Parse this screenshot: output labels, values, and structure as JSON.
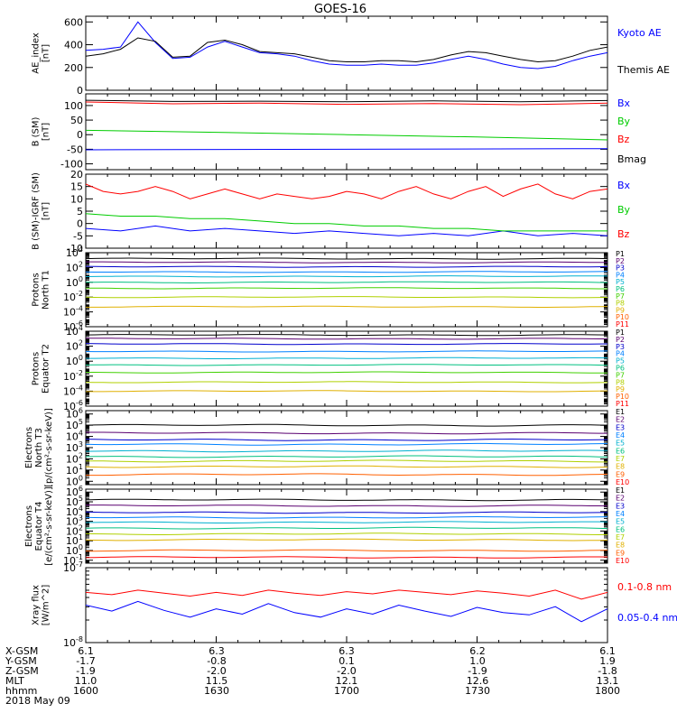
{
  "title": "GOES-16",
  "footer": {
    "row_labels": [
      "X-GSM",
      "Y-GSM",
      "Z-GSM",
      "MLT",
      "hhmm",
      "2018 May 09"
    ],
    "columns": [
      {
        "values": [
          "6.1",
          "-1.7",
          "-1.9",
          "11.0",
          "1600"
        ]
      },
      {
        "values": [
          "6.3",
          "-0.8",
          "-2.0",
          "11.5",
          "1630"
        ]
      },
      {
        "values": [
          "6.3",
          "0.1",
          "-2.0",
          "12.1",
          "1700"
        ]
      },
      {
        "values": [
          "6.2",
          "1.0",
          "-1.9",
          "12.6",
          "1730"
        ]
      },
      {
        "values": [
          "6.1",
          "1.9",
          "-1.8",
          "13.1",
          "1800"
        ]
      }
    ]
  },
  "chart_data": [
    {
      "type": "line",
      "ylabel": [
        "AE_index",
        "[nT]"
      ],
      "yticks": [
        "600",
        "400",
        "200",
        "0"
      ],
      "ylim": [
        0,
        650
      ],
      "series": [
        {
          "name": "Kyoto AE",
          "color": "#0000ff",
          "x": [
            0,
            4,
            8,
            12,
            16,
            20,
            24,
            28,
            32,
            36,
            40,
            44,
            48,
            52,
            56,
            60,
            64,
            68,
            72,
            76,
            80,
            84,
            88,
            92,
            96,
            100,
            104,
            108,
            112,
            116,
            120
          ],
          "y": [
            350,
            360,
            380,
            600,
            420,
            280,
            290,
            380,
            430,
            380,
            330,
            320,
            300,
            260,
            230,
            220,
            220,
            230,
            220,
            220,
            240,
            270,
            300,
            270,
            230,
            200,
            190,
            210,
            260,
            300,
            330
          ]
        },
        {
          "name": "Themis AE",
          "color": "#000000",
          "x": [
            0,
            4,
            8,
            12,
            16,
            20,
            24,
            28,
            32,
            36,
            40,
            44,
            48,
            52,
            56,
            60,
            64,
            68,
            72,
            76,
            80,
            84,
            88,
            92,
            96,
            100,
            104,
            108,
            112,
            116,
            120
          ],
          "y": [
            300,
            320,
            360,
            460,
            430,
            290,
            300,
            420,
            440,
            400,
            340,
            330,
            320,
            290,
            260,
            250,
            250,
            260,
            260,
            250,
            270,
            310,
            340,
            330,
            300,
            270,
            250,
            260,
            300,
            350,
            380
          ]
        }
      ]
    },
    {
      "type": "line",
      "ylabel": [
        "B (SM)",
        "[nT]"
      ],
      "yticks": [
        "100",
        "50",
        "0",
        "-50",
        "-100"
      ],
      "ylim": [
        -120,
        140
      ],
      "series": [
        {
          "name": "Bx",
          "color": "#0000ff",
          "x": [
            0,
            120
          ],
          "y": [
            -52,
            -48
          ]
        },
        {
          "name": "By",
          "color": "#00cc00",
          "x": [
            0,
            30,
            60,
            90,
            120
          ],
          "y": [
            15,
            8,
            0,
            -8,
            -18
          ]
        },
        {
          "name": "Bz",
          "color": "#ff0000",
          "x": [
            0,
            20,
            40,
            60,
            80,
            100,
            120
          ],
          "y": [
            112,
            106,
            108,
            104,
            107,
            103,
            108
          ]
        },
        {
          "name": "Bmag",
          "color": "#000000",
          "x": [
            0,
            20,
            40,
            60,
            80,
            100,
            120
          ],
          "y": [
            118,
            114,
            115,
            113,
            116,
            113,
            117
          ]
        }
      ]
    },
    {
      "type": "line",
      "ylabel": [
        "B (SM)-IGRF (SM)",
        "[nT]"
      ],
      "yticks": [
        "20",
        "15",
        "10",
        "5",
        "0",
        "-5",
        "-10"
      ],
      "ylim": [
        -10,
        20
      ],
      "series": [
        {
          "name": "Bx",
          "color": "#0000ff",
          "x": [
            0,
            8,
            16,
            24,
            32,
            40,
            48,
            56,
            64,
            72,
            80,
            88,
            96,
            104,
            112,
            120
          ],
          "y": [
            -2,
            -3,
            -1,
            -3,
            -2,
            -3,
            -4,
            -3,
            -4,
            -5,
            -4,
            -5,
            -3,
            -5,
            -4,
            -5
          ]
        },
        {
          "name": "By",
          "color": "#00cc00",
          "x": [
            0,
            8,
            16,
            24,
            32,
            40,
            48,
            56,
            64,
            72,
            80,
            88,
            96,
            104,
            112,
            120
          ],
          "y": [
            4,
            3,
            3,
            2,
            2,
            1,
            0,
            0,
            -1,
            -1,
            -2,
            -2,
            -3,
            -3,
            -3,
            -3
          ]
        },
        {
          "name": "Bz",
          "color": "#ff0000",
          "x": [
            0,
            4,
            8,
            12,
            16,
            20,
            24,
            28,
            32,
            36,
            40,
            44,
            48,
            52,
            56,
            60,
            64,
            68,
            72,
            76,
            80,
            84,
            88,
            92,
            96,
            100,
            104,
            108,
            112,
            116,
            120
          ],
          "y": [
            16,
            13,
            12,
            13,
            15,
            13,
            10,
            12,
            14,
            12,
            10,
            12,
            11,
            10,
            11,
            13,
            12,
            10,
            13,
            15,
            12,
            10,
            13,
            15,
            11,
            14,
            16,
            12,
            10,
            13,
            14
          ]
        }
      ]
    },
    {
      "type": "line",
      "yscale": "log",
      "ylabel": [
        "Protons",
        "North T1"
      ],
      "yticks": [
        "10^4",
        "10^2",
        "10^0",
        "10^-2",
        "10^-4",
        "10^-6"
      ],
      "ylim_exp": [
        -6,
        4
      ],
      "channels": [
        "P1",
        "P2",
        "P3",
        "P4",
        "P5",
        "P6",
        "P7",
        "P8",
        "P9",
        "P10",
        "P11"
      ],
      "channel_colors": [
        "#000000",
        "#5a0070",
        "#0000cc",
        "#0080ff",
        "#00b0d0",
        "#00c080",
        "#40d000",
        "#b0d000",
        "#e0b000",
        "#ff6000",
        "#ff0000"
      ],
      "series_exp": [
        3.2,
        2.7,
        2.1,
        1.4,
        0.8,
        0.0,
        -0.8,
        -2.0,
        -3.3
      ]
    },
    {
      "type": "line",
      "yscale": "log",
      "ylabel": [
        "Protons",
        "Equator T2"
      ],
      "yticks": [
        "10^4",
        "10^2",
        "10^0",
        "10^-2",
        "10^-4",
        "10^-6"
      ],
      "ylim_exp": [
        -6,
        4
      ],
      "channels": [
        "P1",
        "P2",
        "P3",
        "P4",
        "P5",
        "P6",
        "P7",
        "P8",
        "P9",
        "P10",
        "P11"
      ],
      "channel_colors": [
        "#000000",
        "#5a0070",
        "#0000cc",
        "#0080ff",
        "#00b0d0",
        "#00c080",
        "#40d000",
        "#b0d000",
        "#e0b000",
        "#ff6000",
        "#ff0000"
      ],
      "series_exp": [
        3.5,
        3.0,
        2.3,
        1.3,
        0.4,
        -0.5,
        -1.5,
        -2.8,
        -4.0
      ]
    },
    {
      "type": "line",
      "yscale": "log",
      "ylabel": [
        "Electrons",
        "North T3"
      ],
      "unit_label": "[p/(cm²-s-sr-keV)]",
      "yticks": [
        "10^6",
        "10^5",
        "10^4",
        "10^3",
        "10^2",
        "10^1",
        "10^0"
      ],
      "ylim_exp": [
        -0.3,
        6.3
      ],
      "channels": [
        "E1",
        "E2",
        "E3",
        "E4",
        "E5",
        "E6",
        "E7",
        "E8",
        "E9",
        "E10"
      ],
      "channel_colors": [
        "#000000",
        "#5a0070",
        "#0000cc",
        "#0080ff",
        "#00b0d0",
        "#00c080",
        "#b0d000",
        "#e0b000",
        "#ff6000",
        "#ff0000"
      ],
      "series_exp": [
        5.0,
        4.3,
        3.7,
        3.3,
        2.7,
        2.2,
        1.8,
        1.3,
        0.6
      ]
    },
    {
      "type": "line",
      "yscale": "log",
      "ylabel": [
        "Electrons",
        "Equator T4"
      ],
      "unit_label": "[e/(cm²-s-sr-keV)]",
      "yticks": [
        "10^6",
        "10^5",
        "10^4",
        "10^3",
        "10^2",
        "10^1",
        "10^0",
        "10^-1"
      ],
      "ylim_exp": [
        -1.3,
        6.3
      ],
      "channels": [
        "E1",
        "E2",
        "E3",
        "E4",
        "E5",
        "E6",
        "E7",
        "E8",
        "E9",
        "E10"
      ],
      "channel_colors": [
        "#000000",
        "#5a0070",
        "#0000cc",
        "#0080ff",
        "#00b0d0",
        "#00c080",
        "#b0d000",
        "#e0b000",
        "#ff6000",
        "#ff0000"
      ],
      "series_exp": [
        5.2,
        4.6,
        3.9,
        3.4,
        2.9,
        2.3,
        1.7,
        1.1,
        0.0,
        -0.7
      ]
    },
    {
      "type": "line",
      "yscale": "log",
      "ylabel": [
        "Xray flux",
        "[W/m^2]"
      ],
      "yticks": [
        "10^-7",
        "10^-8"
      ],
      "ylim_exp": [
        -8,
        -7
      ],
      "series": [
        {
          "name": "0.1-0.8 nm",
          "color": "#ff0000",
          "x": [
            0,
            6,
            12,
            18,
            24,
            30,
            36,
            42,
            48,
            54,
            60,
            66,
            72,
            78,
            84,
            90,
            96,
            102,
            108,
            114,
            120
          ],
          "y_exp": [
            -7.33,
            -7.36,
            -7.3,
            -7.34,
            -7.38,
            -7.33,
            -7.37,
            -7.3,
            -7.34,
            -7.37,
            -7.32,
            -7.35,
            -7.3,
            -7.33,
            -7.36,
            -7.31,
            -7.34,
            -7.38,
            -7.3,
            -7.42,
            -7.33
          ]
        },
        {
          "name": "0.05-0.4 nm",
          "color": "#0000ff",
          "x": [
            0,
            6,
            12,
            18,
            24,
            30,
            36,
            42,
            48,
            54,
            60,
            66,
            72,
            78,
            84,
            90,
            96,
            102,
            108,
            114,
            120
          ],
          "y_exp": [
            -7.5,
            -7.58,
            -7.45,
            -7.57,
            -7.66,
            -7.55,
            -7.62,
            -7.48,
            -7.6,
            -7.66,
            -7.55,
            -7.62,
            -7.5,
            -7.58,
            -7.65,
            -7.53,
            -7.6,
            -7.63,
            -7.52,
            -7.72,
            -7.55
          ]
        }
      ]
    }
  ]
}
